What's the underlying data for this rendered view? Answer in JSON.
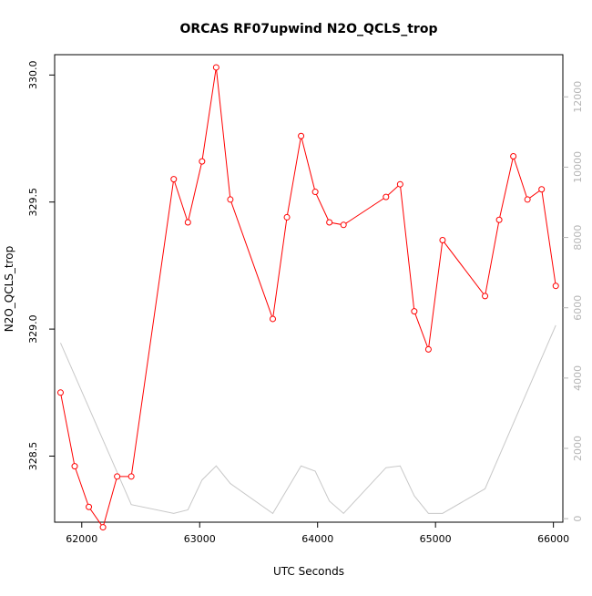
{
  "chart_data": {
    "type": "line",
    "title": "ORCAS RF07upwind N2O_QCLS_trop",
    "xlabel": "UTC Seconds",
    "ylabel": "N2O_QCLS_trop",
    "xlim": [
      61770,
      66080
    ],
    "ylim": [
      328.24,
      330.08
    ],
    "y2lim": [
      -100,
      13200
    ],
    "x_ticks": [
      62000,
      63000,
      64000,
      65000,
      66000
    ],
    "x_tick_labels": [
      "62000",
      "63000",
      "64000",
      "65000",
      "66000"
    ],
    "y_ticks": [
      328.5,
      329.0,
      329.5,
      330.0
    ],
    "y_tick_labels": [
      "328.5",
      "329.0",
      "329.5",
      "330.0"
    ],
    "y2_ticks": [
      0,
      2000,
      4000,
      6000,
      8000,
      10000,
      12000
    ],
    "y2_tick_labels": [
      "0",
      "2000",
      "4000",
      "6000",
      "8000",
      "10000",
      "12000"
    ],
    "series": [
      {
        "axis": "left",
        "color": "#ff0000",
        "marker": "circle-open",
        "x": [
          61820,
          61940,
          62060,
          62180,
          62300,
          62420,
          62780,
          62900,
          63020,
          63140,
          63260,
          63620,
          63740,
          63860,
          63980,
          64100,
          64220,
          64580,
          64700,
          64820,
          64940,
          65060,
          65420,
          65540,
          65660,
          65780,
          65900,
          66020
        ],
        "y": [
          328.75,
          328.46,
          328.3,
          328.22,
          328.42,
          328.42,
          329.59,
          329.42,
          329.66,
          330.03,
          329.51,
          329.04,
          329.44,
          329.76,
          329.54,
          329.42,
          329.41,
          329.52,
          329.57,
          329.07,
          328.92,
          329.35,
          329.13,
          329.43,
          329.68,
          329.51,
          329.55,
          329.17
        ]
      },
      {
        "axis": "right",
        "color": "#c8c8c8",
        "marker": "none",
        "x": [
          61820,
          62420,
          62780,
          62900,
          63020,
          63140,
          63260,
          63620,
          63860,
          63980,
          64100,
          64220,
          64580,
          64700,
          64820,
          64940,
          65060,
          65420,
          66020
        ],
        "y": [
          5000,
          400,
          150,
          250,
          1100,
          1500,
          1000,
          150,
          1500,
          1350,
          500,
          150,
          1450,
          1500,
          650,
          150,
          150,
          850,
          5500
        ]
      }
    ]
  }
}
